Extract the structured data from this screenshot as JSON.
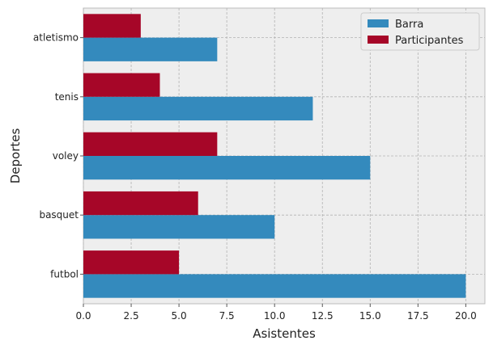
{
  "chart_data": {
    "type": "bar",
    "orientation": "horizontal",
    "categories": [
      "futbol",
      "basquet",
      "voley",
      "tenis",
      "atletismo"
    ],
    "series": [
      {
        "name": "Barra",
        "color": "#348ABD",
        "values": [
          20,
          10,
          15,
          12,
          7
        ]
      },
      {
        "name": "Participantes",
        "color": "#A60628",
        "values": [
          5,
          6,
          7,
          4,
          3
        ]
      }
    ],
    "xlabel": "Asistentes",
    "ylabel": "Deportes",
    "xlim": [
      0,
      21
    ],
    "xticks": [
      "0.0",
      "2.5",
      "5.0",
      "7.5",
      "10.0",
      "12.5",
      "15.0",
      "17.5",
      "20.0"
    ],
    "grid": true,
    "legend": "top-right",
    "background": "#EEEEEE"
  }
}
